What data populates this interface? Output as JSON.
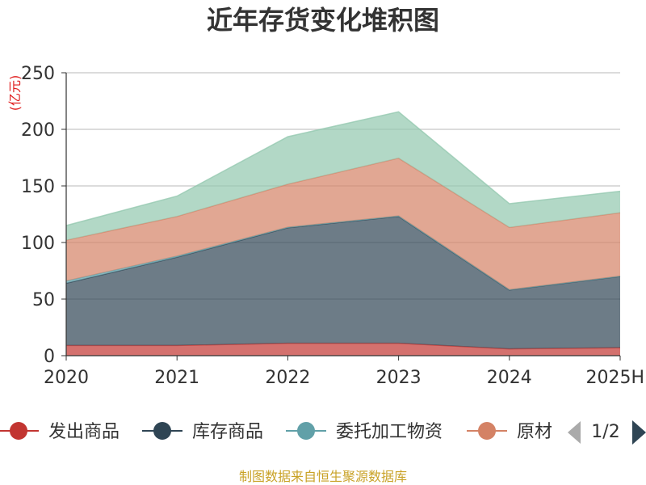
{
  "chart_data": {
    "type": "area",
    "title": "近年存货变化堆积图",
    "unit": "(亿元)",
    "categories": [
      "2020",
      "2021",
      "2022",
      "2023",
      "2024",
      "2025H"
    ],
    "ylim": [
      0,
      250
    ],
    "yticks": [
      0,
      50,
      100,
      150,
      200,
      250
    ],
    "stacked": true,
    "grid": true,
    "series": [
      {
        "name": "发出商品",
        "color": "#c23531",
        "values": [
          9,
          9,
          11,
          11,
          6,
          7
        ]
      },
      {
        "name": "库存商品",
        "color": "#2f4554",
        "values": [
          55,
          78,
          102,
          112,
          52,
          63
        ]
      },
      {
        "name": "委托加工物资",
        "color": "#61a0a8",
        "values": [
          2,
          1,
          0.5,
          0.5,
          0.3,
          0.3
        ]
      },
      {
        "name": "原材料",
        "color": "#d48265",
        "values": [
          36,
          35,
          38,
          51,
          55,
          56
        ]
      },
      {
        "name": "",
        "color": "#91c7ae",
        "values": [
          13,
          18,
          42,
          41,
          21,
          19
        ]
      }
    ]
  },
  "legend": {
    "visible_items": [
      "发出商品",
      "库存商品",
      "委托加工物资",
      "原材"
    ],
    "page": "1/2"
  },
  "footer": "制图数据来自恒生聚源数据库"
}
